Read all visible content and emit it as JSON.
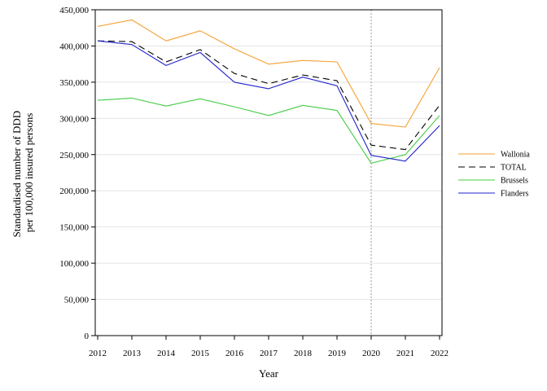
{
  "chart_data": {
    "type": "line",
    "title": "",
    "xlabel": "Year",
    "ylabel_lines": [
      "Standardised number of DDD",
      "per 100,000 insured persons"
    ],
    "x": [
      "2012",
      "2013",
      "2014",
      "2015",
      "2016",
      "2017",
      "2018",
      "2019",
      "2020",
      "2021",
      "2022"
    ],
    "ylim": [
      0,
      450000
    ],
    "yticks": [
      "0",
      "50,000",
      "100,000",
      "150,000",
      "200,000",
      "250,000",
      "300,000",
      "350,000",
      "400,000",
      "450,000"
    ],
    "grid": true,
    "reference_line_x": "2020",
    "legend_position": "right",
    "series": [
      {
        "name": "Wallonia",
        "color": "#f5a030",
        "dash": "",
        "values": [
          427000,
          436000,
          407000,
          421000,
          396000,
          375000,
          380000,
          378000,
          293000,
          288000,
          370000
        ]
      },
      {
        "name": "TOTAL",
        "color": "#000000",
        "dash": "8,5",
        "values": [
          407000,
          406000,
          378000,
          395000,
          362000,
          348000,
          360000,
          352000,
          263000,
          257000,
          318000
        ]
      },
      {
        "name": "Brussels",
        "color": "#44cc44",
        "dash": "",
        "values": [
          325000,
          328000,
          317000,
          327000,
          316000,
          304000,
          318000,
          311000,
          238000,
          250000,
          304000
        ]
      },
      {
        "name": "Flanders",
        "color": "#2222cc",
        "dash": "",
        "values": [
          407000,
          402000,
          373000,
          391000,
          350000,
          341000,
          357000,
          345000,
          249000,
          241000,
          290000
        ]
      }
    ]
  }
}
